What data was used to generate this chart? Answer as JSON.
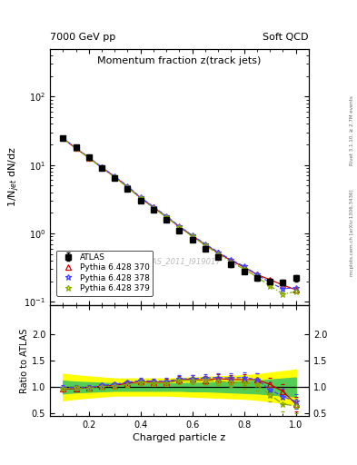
{
  "title_top_left": "7000 GeV pp",
  "title_top_right": "Soft QCD",
  "plot_title": "Momentum fraction z(track jets)",
  "xlabel": "Charged particle z",
  "ylabel_main": "1/N$_{jet}$ dN/dz",
  "ylabel_ratio": "Ratio to ATLAS",
  "watermark": "ATLAS_2011_I919017",
  "right_label_top": "Rivet 3.1.10, ≥ 2.7M events",
  "right_label_bot": "mcplots.cern.ch [arXiv:1306.3436]",
  "legend": [
    "ATLAS",
    "Pythia 6.428 370",
    "Pythia 6.428 378",
    "Pythia 6.428 379"
  ],
  "atlas_color": "black",
  "p370_color": "#cc0000",
  "p378_color": "#4444ff",
  "p379_color": "#88aa00",
  "z_vals": [
    0.1,
    0.15,
    0.2,
    0.25,
    0.3,
    0.35,
    0.4,
    0.45,
    0.5,
    0.55,
    0.6,
    0.65,
    0.7,
    0.75,
    0.8,
    0.85,
    0.9,
    0.95,
    1.0
  ],
  "atlas_y": [
    25.0,
    18.0,
    13.0,
    9.0,
    6.5,
    4.5,
    3.0,
    2.2,
    1.6,
    1.1,
    0.8,
    0.6,
    0.45,
    0.35,
    0.28,
    0.22,
    0.2,
    0.19,
    0.22
  ],
  "atlas_yerr": [
    0.8,
    0.5,
    0.4,
    0.3,
    0.2,
    0.15,
    0.12,
    0.09,
    0.07,
    0.06,
    0.04,
    0.03,
    0.03,
    0.025,
    0.02,
    0.018,
    0.016,
    0.018,
    0.025
  ],
  "p370_y": [
    24.5,
    17.5,
    12.8,
    9.2,
    6.7,
    4.8,
    3.3,
    2.4,
    1.75,
    1.25,
    0.92,
    0.68,
    0.52,
    0.4,
    0.32,
    0.25,
    0.21,
    0.175,
    0.15
  ],
  "p378_y": [
    24.8,
    17.8,
    12.9,
    9.3,
    6.8,
    4.9,
    3.35,
    2.45,
    1.78,
    1.27,
    0.93,
    0.7,
    0.53,
    0.41,
    0.33,
    0.25,
    0.19,
    0.155,
    0.16
  ],
  "p379_y": [
    24.6,
    17.6,
    12.7,
    9.1,
    6.6,
    4.7,
    3.25,
    2.35,
    1.72,
    1.23,
    0.9,
    0.67,
    0.5,
    0.38,
    0.3,
    0.23,
    0.17,
    0.13,
    0.14
  ],
  "ratio_p370": [
    0.96,
    0.97,
    0.985,
    1.02,
    1.03,
    1.07,
    1.1,
    1.09,
    1.09,
    1.14,
    1.15,
    1.13,
    1.16,
    1.14,
    1.14,
    1.14,
    1.05,
    0.92,
    0.68
  ],
  "ratio_p370_err": [
    0.04,
    0.04,
    0.04,
    0.04,
    0.04,
    0.04,
    0.05,
    0.05,
    0.06,
    0.07,
    0.07,
    0.07,
    0.08,
    0.09,
    0.1,
    0.12,
    0.13,
    0.14,
    0.14
  ],
  "ratio_p378": [
    0.99,
    0.99,
    0.99,
    1.03,
    1.05,
    1.09,
    1.12,
    1.11,
    1.11,
    1.15,
    1.16,
    1.17,
    1.18,
    1.17,
    1.18,
    1.14,
    0.95,
    0.82,
    0.73
  ],
  "ratio_p378_err": [
    0.04,
    0.04,
    0.04,
    0.04,
    0.04,
    0.04,
    0.05,
    0.05,
    0.06,
    0.07,
    0.07,
    0.07,
    0.08,
    0.09,
    0.1,
    0.12,
    0.13,
    0.14,
    0.14
  ],
  "ratio_p379": [
    0.97,
    0.98,
    0.975,
    1.01,
    1.015,
    1.04,
    1.08,
    1.07,
    1.075,
    1.12,
    1.125,
    1.12,
    1.11,
    1.09,
    1.07,
    1.05,
    0.85,
    0.68,
    0.64
  ],
  "ratio_p379_err": [
    0.04,
    0.04,
    0.04,
    0.04,
    0.04,
    0.04,
    0.05,
    0.05,
    0.06,
    0.07,
    0.07,
    0.07,
    0.08,
    0.09,
    0.1,
    0.12,
    0.13,
    0.14,
    0.14
  ],
  "band_inner_lo": [
    0.88,
    0.9,
    0.91,
    0.92,
    0.93,
    0.93,
    0.93,
    0.93,
    0.93,
    0.93,
    0.92,
    0.92,
    0.91,
    0.9,
    0.89,
    0.88,
    0.86,
    0.84,
    0.82
  ],
  "band_inner_hi": [
    1.12,
    1.1,
    1.09,
    1.08,
    1.07,
    1.07,
    1.07,
    1.07,
    1.07,
    1.07,
    1.08,
    1.08,
    1.09,
    1.1,
    1.11,
    1.12,
    1.14,
    1.16,
    1.18
  ],
  "band_outer_lo": [
    0.75,
    0.78,
    0.8,
    0.82,
    0.84,
    0.84,
    0.84,
    0.84,
    0.84,
    0.83,
    0.82,
    0.81,
    0.8,
    0.79,
    0.78,
    0.76,
    0.73,
    0.7,
    0.67
  ],
  "band_outer_hi": [
    1.25,
    1.22,
    1.2,
    1.18,
    1.16,
    1.16,
    1.16,
    1.16,
    1.16,
    1.17,
    1.18,
    1.19,
    1.2,
    1.21,
    1.22,
    1.24,
    1.27,
    1.3,
    1.33
  ],
  "xlim": [
    0.05,
    1.05
  ],
  "ylim_main": [
    0.09,
    500
  ],
  "ylim_ratio": [
    0.45,
    2.55
  ],
  "yticks_ratio": [
    0.5,
    1.0,
    1.5,
    2.0
  ]
}
